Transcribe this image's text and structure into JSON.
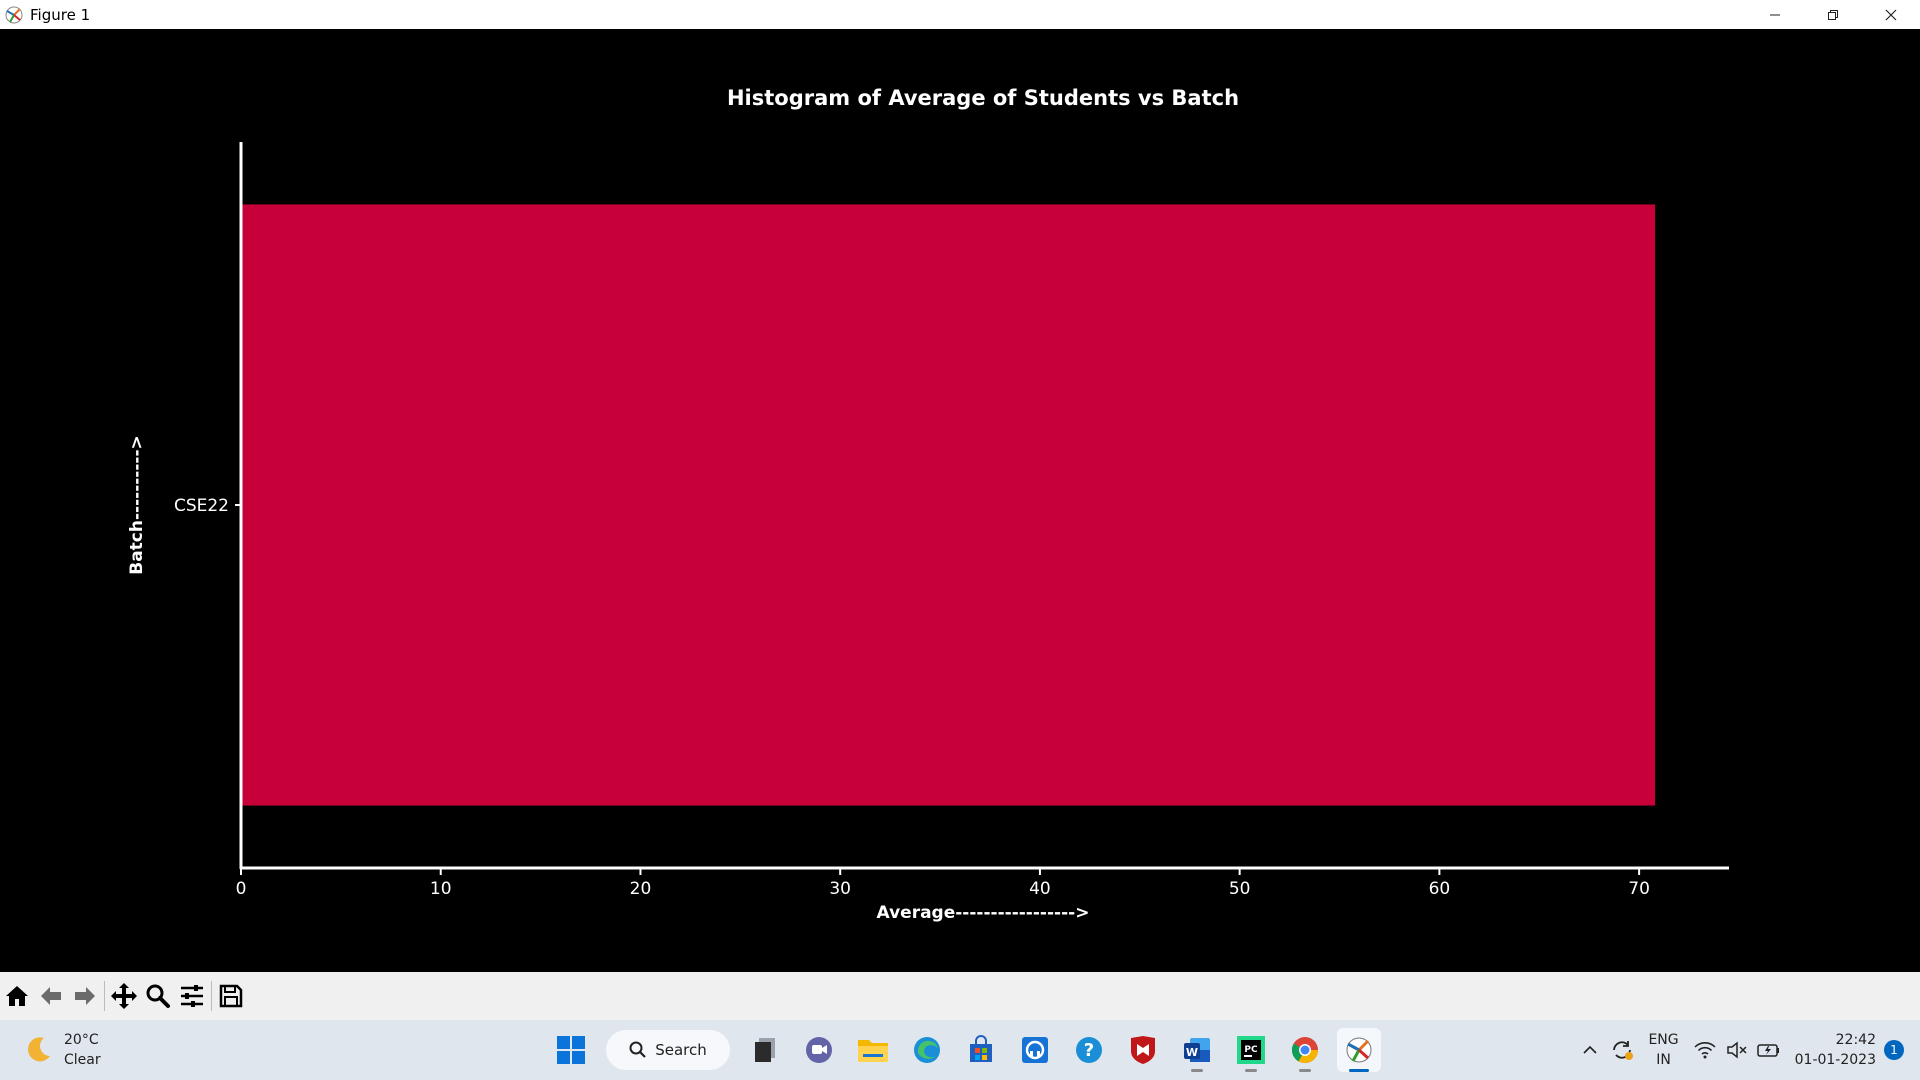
{
  "window": {
    "title": "Figure 1"
  },
  "chart_data": {
    "type": "bar",
    "orientation": "horizontal",
    "title": "Histogram of Average of Students vs Batch",
    "xlabel": "Average----------------->",
    "ylabel": "Batch---------->",
    "categories": [
      "CSE22"
    ],
    "values": [
      70.8
    ],
    "xlim": [
      0,
      74.5
    ],
    "xticks": [
      0,
      10,
      20,
      30,
      40,
      50,
      60,
      70
    ],
    "bar_color": "#c70039",
    "background": "#000000",
    "axis_color": "#ffffff",
    "grid": false
  },
  "toolbar": {
    "buttons": [
      "home-icon",
      "back-arrow-icon",
      "forward-arrow-icon",
      "pan-icon",
      "zoom-icon",
      "configure-subplots-icon",
      "save-icon"
    ]
  },
  "taskbar": {
    "weather": {
      "temp": "20°C",
      "condition": "Clear"
    },
    "search_label": "Search",
    "lang_line1": "ENG",
    "lang_line2": "IN",
    "time": "22:42",
    "date": "01-01-2023",
    "notification_count": "1"
  }
}
